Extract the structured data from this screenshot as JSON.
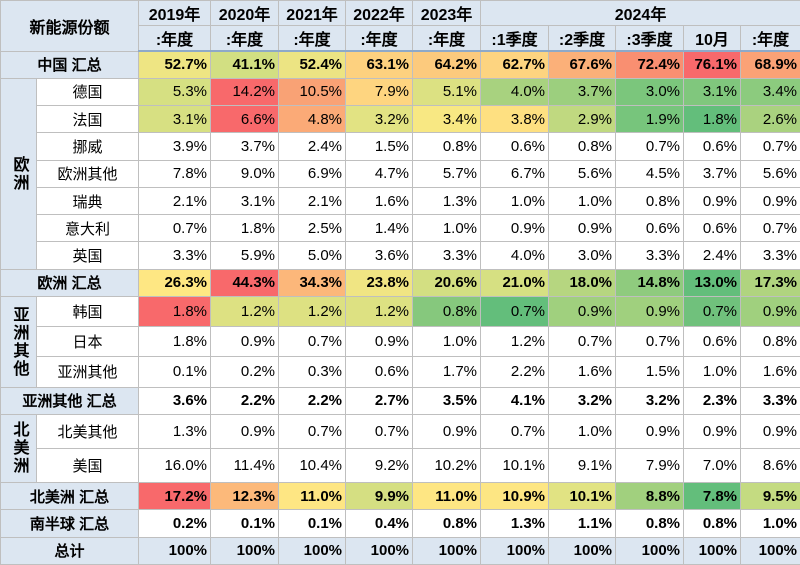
{
  "header": {
    "corner": "新能源份额",
    "years": [
      "2019年",
      "2020年",
      "2021年",
      "2022年",
      "2023年",
      "2024年"
    ],
    "periods": [
      ":年度",
      ":年度",
      ":年度",
      ":年度",
      ":年度",
      ":1季度",
      ":2季度",
      ":3季度",
      "10月",
      ":年度"
    ]
  },
  "sections": [
    {
      "label": "中国 汇总",
      "values": [
        "52.7%",
        "41.1%",
        "52.4%",
        "63.1%",
        "64.2%",
        "62.7%",
        "67.6%",
        "72.4%",
        "76.1%",
        "68.9%"
      ],
      "colors": [
        "#eee583",
        "#d2df82",
        "#ece483",
        "#fdd17f",
        "#fcca7d",
        "#fdd480",
        "#fbb079",
        "#f98f71",
        "#f8696b",
        "#fba276"
      ]
    },
    {
      "group": "欧洲",
      "rows": [
        {
          "label": "德国",
          "values": [
            "5.3%",
            "14.2%",
            "10.5%",
            "7.9%",
            "5.1%",
            "4.0%",
            "3.7%",
            "3.0%",
            "3.1%",
            "3.4%"
          ],
          "colors": [
            "#d6e082",
            "#f8696b",
            "#f9a275",
            "#fed580",
            "#dce182",
            "#a8d27f",
            "#9ccf7e",
            "#7bc67c",
            "#80c77d",
            "#8ccb7e"
          ]
        },
        {
          "label": "法国",
          "values": [
            "3.1%",
            "6.6%",
            "4.8%",
            "3.2%",
            "3.4%",
            "3.8%",
            "2.9%",
            "1.9%",
            "1.8%",
            "2.6%"
          ],
          "colors": [
            "#d7e082",
            "#f8696b",
            "#fbaa77",
            "#e2e383",
            "#f8e883",
            "#fee081",
            "#c0d980",
            "#77c57c",
            "#63be7b",
            "#aad27f"
          ]
        },
        {
          "label": "挪威",
          "values": [
            "3.9%",
            "3.7%",
            "2.4%",
            "1.5%",
            "0.8%",
            "0.6%",
            "0.8%",
            "0.7%",
            "0.6%",
            "0.7%"
          ]
        },
        {
          "label": "欧洲其他",
          "values": [
            "7.8%",
            "9.0%",
            "6.9%",
            "4.7%",
            "5.7%",
            "6.7%",
            "5.6%",
            "4.5%",
            "3.7%",
            "5.6%"
          ]
        },
        {
          "label": "瑞典",
          "values": [
            "2.1%",
            "3.1%",
            "2.1%",
            "1.6%",
            "1.3%",
            "1.0%",
            "1.0%",
            "0.8%",
            "0.9%",
            "0.9%"
          ]
        },
        {
          "label": "意大利",
          "values": [
            "0.7%",
            "1.8%",
            "2.5%",
            "1.4%",
            "1.0%",
            "0.9%",
            "0.9%",
            "0.6%",
            "0.6%",
            "0.7%"
          ]
        },
        {
          "label": "英国",
          "values": [
            "3.3%",
            "5.9%",
            "5.0%",
            "3.6%",
            "3.3%",
            "4.0%",
            "3.0%",
            "3.3%",
            "2.4%",
            "3.3%"
          ]
        }
      ]
    },
    {
      "label": "欧洲 汇总",
      "values": [
        "26.3%",
        "44.3%",
        "34.3%",
        "23.8%",
        "20.6%",
        "21.0%",
        "18.0%",
        "14.8%",
        "13.0%",
        "17.3%"
      ],
      "colors": [
        "#fee783",
        "#f8696b",
        "#fcb77a",
        "#f0e583",
        "#d3df82",
        "#d6e082",
        "#b6d680",
        "#8fcb7e",
        "#63be7b",
        "#b0d47f"
      ]
    },
    {
      "group": "亚洲其他",
      "rows": [
        {
          "label": "韩国",
          "values": [
            "1.8%",
            "1.2%",
            "1.2%",
            "1.2%",
            "0.8%",
            "0.7%",
            "0.9%",
            "0.9%",
            "0.7%",
            "0.9%"
          ],
          "colors": [
            "#f8696b",
            "#dde182",
            "#dde182",
            "#dde182",
            "#86c87d",
            "#63be7b",
            "#a0d07e",
            "#a0d07e",
            "#70c17c",
            "#a0d07e"
          ]
        },
        {
          "label": "日本",
          "values": [
            "1.8%",
            "0.9%",
            "0.7%",
            "0.9%",
            "1.0%",
            "1.2%",
            "0.7%",
            "0.7%",
            "0.6%",
            "0.8%"
          ]
        },
        {
          "label": "亚洲其他",
          "values": [
            "0.1%",
            "0.2%",
            "0.3%",
            "0.6%",
            "1.7%",
            "2.2%",
            "1.6%",
            "1.5%",
            "1.0%",
            "1.6%"
          ]
        }
      ]
    },
    {
      "label": "亚洲其他 汇总",
      "values": [
        "3.6%",
        "2.2%",
        "2.2%",
        "2.7%",
        "3.5%",
        "4.1%",
        "3.2%",
        "3.2%",
        "2.3%",
        "3.3%"
      ]
    },
    {
      "group": "北美洲",
      "rows": [
        {
          "label": "北美其他",
          "values": [
            "1.3%",
            "0.9%",
            "0.7%",
            "0.7%",
            "0.9%",
            "0.7%",
            "1.0%",
            "0.9%",
            "0.9%",
            "0.9%"
          ]
        },
        {
          "label": "美国",
          "values": [
            "16.0%",
            "11.4%",
            "10.4%",
            "9.2%",
            "10.2%",
            "10.1%",
            "9.1%",
            "7.9%",
            "7.0%",
            "8.6%"
          ]
        }
      ]
    },
    {
      "label": "北美洲 汇总",
      "values": [
        "17.2%",
        "12.3%",
        "11.0%",
        "9.9%",
        "11.0%",
        "10.9%",
        "10.1%",
        "8.8%",
        "7.8%",
        "9.5%"
      ],
      "colors": [
        "#f8696b",
        "#fcb97a",
        "#fee683",
        "#d5df82",
        "#fee683",
        "#fde683",
        "#e1e383",
        "#a1d07e",
        "#63be7b",
        "#c4db81"
      ]
    },
    {
      "label": "南半球 汇总",
      "values": [
        "0.2%",
        "0.1%",
        "0.1%",
        "0.4%",
        "0.8%",
        "1.3%",
        "1.1%",
        "0.8%",
        "0.8%",
        "1.0%"
      ]
    },
    {
      "label": "总计",
      "values": [
        "100%",
        "100%",
        "100%",
        "100%",
        "100%",
        "100%",
        "100%",
        "100%",
        "100%",
        "100%"
      ],
      "sum": true
    }
  ]
}
